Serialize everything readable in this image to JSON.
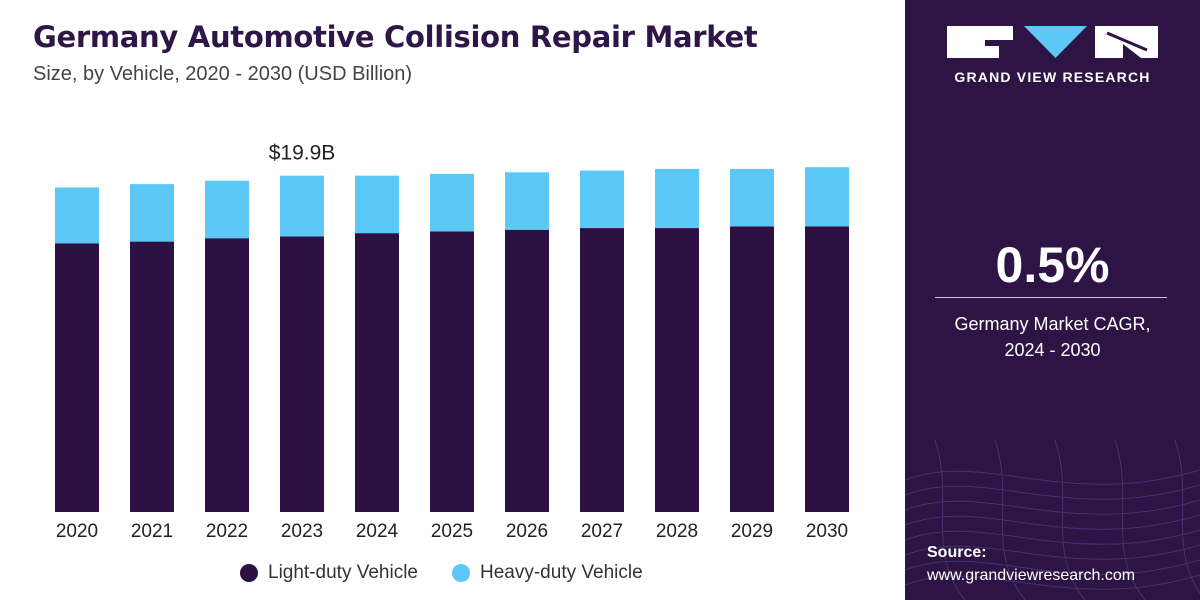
{
  "header": {
    "title": "Germany Automotive Collision Repair Market",
    "subtitle": "Size, by Vehicle, 2020 - 2030 (USD Billion)"
  },
  "chart_data": {
    "type": "bar",
    "stacked": true,
    "categories": [
      "2020",
      "2021",
      "2022",
      "2023",
      "2024",
      "2025",
      "2026",
      "2027",
      "2028",
      "2029",
      "2030"
    ],
    "series": [
      {
        "name": "Light-duty Vehicle",
        "color": "#2e1143",
        "values": [
          15.9,
          16.0,
          16.2,
          16.3,
          16.5,
          16.6,
          16.7,
          16.8,
          16.8,
          16.9,
          16.9
        ]
      },
      {
        "name": "Heavy-duty Vehicle",
        "color": "#5bc8f5",
        "values": [
          3.3,
          3.4,
          3.4,
          3.6,
          3.4,
          3.4,
          3.4,
          3.4,
          3.5,
          3.4,
          3.5
        ]
      }
    ],
    "annotation": {
      "category": "2023",
      "text": "$19.9B"
    },
    "ylim": [
      0,
      21.3
    ],
    "grid": false,
    "legend_position": "bottom"
  },
  "side_panel": {
    "brand_name": "GRAND VIEW RESEARCH",
    "cagr_value": "0.5%",
    "cagr_label_line1": "Germany Market CAGR,",
    "cagr_label_line2": "2024 - 2030",
    "source_title": "Source:",
    "source_url": "www.grandviewresearch.com",
    "colors": {
      "background": "#2d1444",
      "logo_accent": "#5bc8f5"
    }
  }
}
